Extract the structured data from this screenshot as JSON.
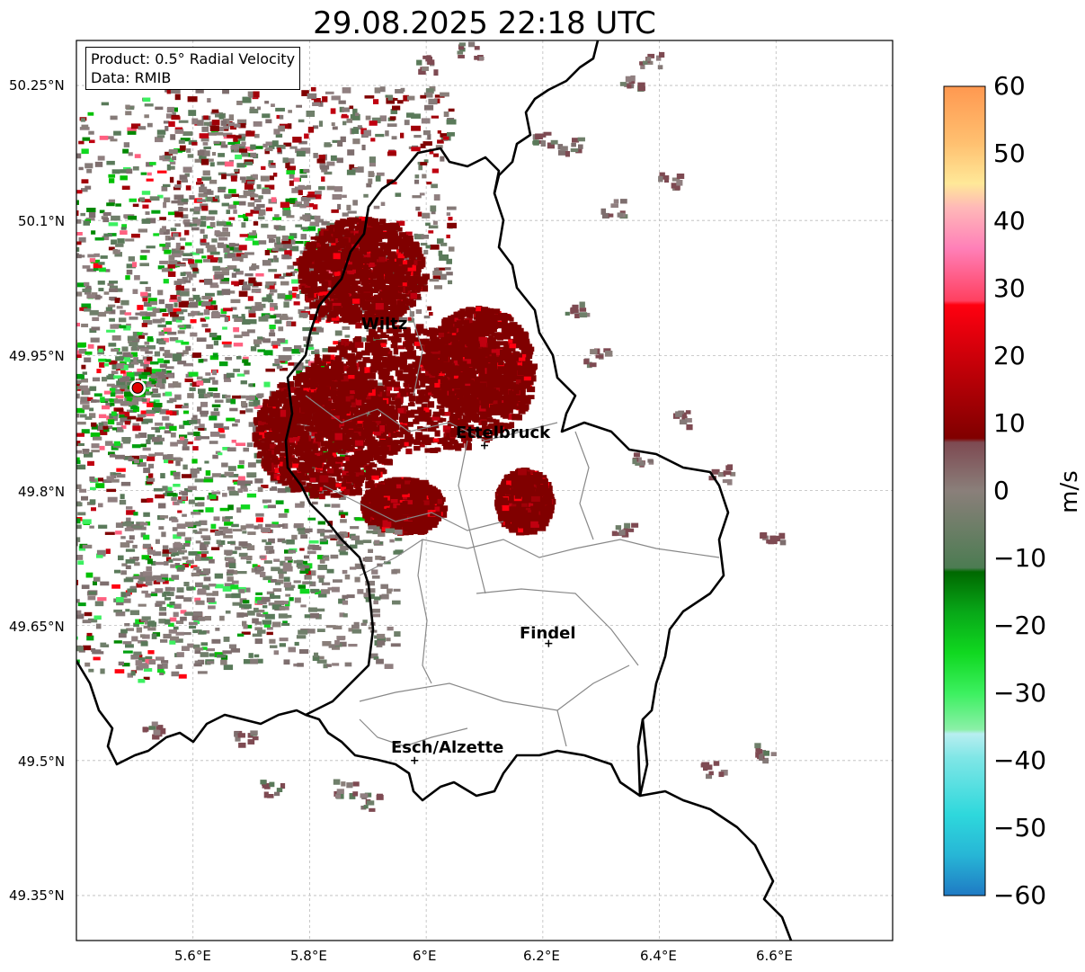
{
  "title": "29.08.2025 22:18 UTC",
  "info": {
    "product": "Product: 0.5° Radial Velocity",
    "data": "Data: RMIB"
  },
  "map": {
    "lon_range": [
      5.4,
      6.8
    ],
    "lat_range": [
      49.3,
      50.3
    ],
    "lon_ticks": [
      "5.6°E",
      "5.8°E",
      "6°E",
      "6.2°E",
      "6.4°E",
      "6.6°E"
    ],
    "lat_ticks": [
      "50.25°N",
      "50.1°N",
      "49.95°N",
      "49.8°N",
      "49.65°N",
      "49.5°N",
      "49.35°N"
    ],
    "grid": true,
    "radar_site": {
      "lon": 5.505,
      "lat": 49.914,
      "color": "#e00000"
    },
    "cities": [
      {
        "name": "Wiltz",
        "lon": 5.93,
        "lat": 49.97
      },
      {
        "name": "Ettelbruck",
        "lon": 6.1,
        "lat": 49.85
      },
      {
        "name": "Findel",
        "lon": 6.21,
        "lat": 49.63
      },
      {
        "name": "Esch/Alzette",
        "lon": 5.98,
        "lat": 49.5
      }
    ]
  },
  "colorbar": {
    "label": "m/s",
    "min": -60,
    "max": 60,
    "ticks": [
      "60",
      "50",
      "40",
      "30",
      "20",
      "10",
      "0",
      "−10",
      "−20",
      "−30",
      "−40",
      "−50",
      "−60"
    ]
  }
}
